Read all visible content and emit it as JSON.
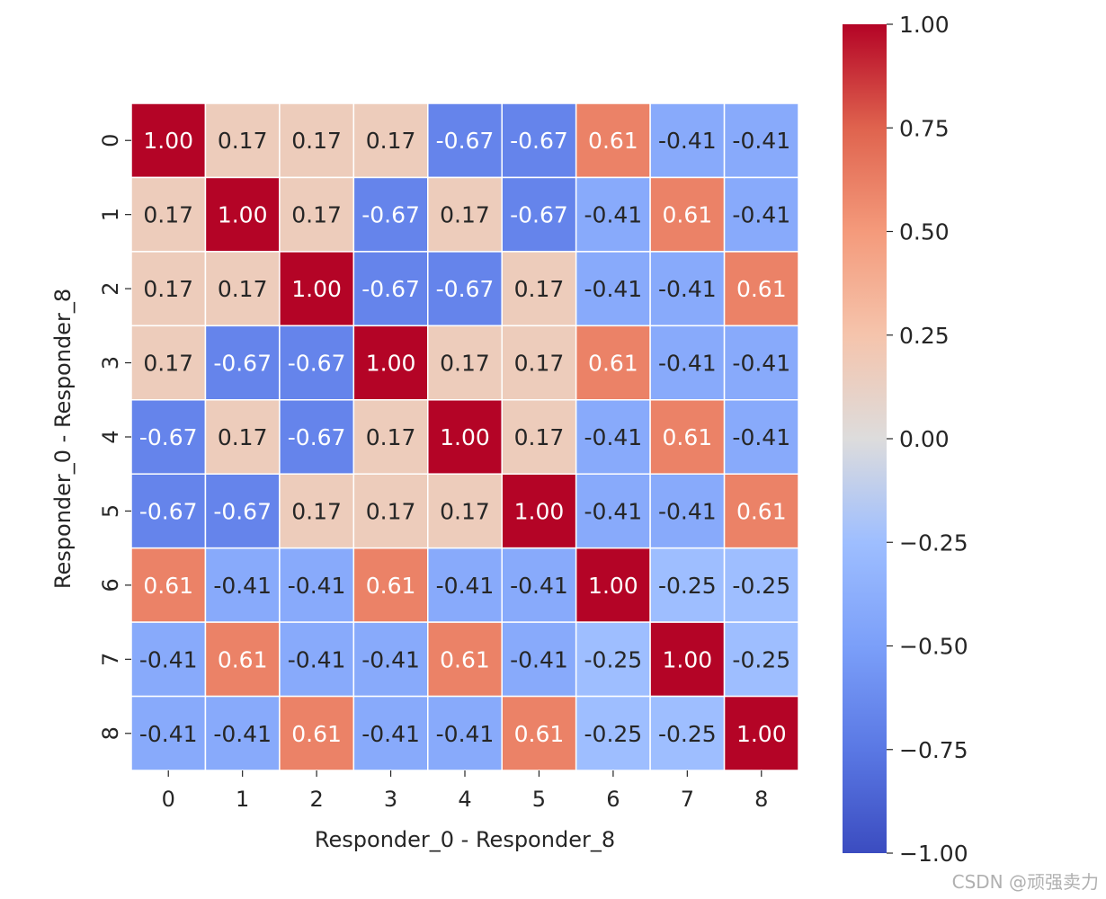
{
  "chart_data": {
    "type": "heatmap",
    "xlabel": "Responder_0 - Responder_8",
    "ylabel": "Responder_0 - Responder_8",
    "x_ticks": [
      "0",
      "1",
      "2",
      "3",
      "4",
      "5",
      "6",
      "7",
      "8"
    ],
    "y_ticks": [
      "0",
      "1",
      "2",
      "3",
      "4",
      "5",
      "6",
      "7",
      "8"
    ],
    "values": [
      [
        1.0,
        0.17,
        0.17,
        0.17,
        -0.67,
        -0.67,
        0.61,
        -0.41,
        -0.41
      ],
      [
        0.17,
        1.0,
        0.17,
        -0.67,
        0.17,
        -0.67,
        -0.41,
        0.61,
        -0.41
      ],
      [
        0.17,
        0.17,
        1.0,
        -0.67,
        -0.67,
        0.17,
        -0.41,
        -0.41,
        0.61
      ],
      [
        0.17,
        -0.67,
        -0.67,
        1.0,
        0.17,
        0.17,
        0.61,
        -0.41,
        -0.41
      ],
      [
        -0.67,
        0.17,
        -0.67,
        0.17,
        1.0,
        0.17,
        -0.41,
        0.61,
        -0.41
      ],
      [
        -0.67,
        -0.67,
        0.17,
        0.17,
        0.17,
        1.0,
        -0.41,
        -0.41,
        0.61
      ],
      [
        0.61,
        -0.41,
        -0.41,
        0.61,
        -0.41,
        -0.41,
        1.0,
        -0.25,
        -0.25
      ],
      [
        -0.41,
        0.61,
        -0.41,
        -0.41,
        0.61,
        -0.41,
        -0.25,
        1.0,
        -0.25
      ],
      [
        -0.41,
        -0.41,
        0.61,
        -0.41,
        -0.41,
        0.61,
        -0.25,
        -0.25,
        1.0
      ]
    ],
    "cell_labels": [
      [
        "1.00",
        "0.17",
        "0.17",
        "0.17",
        "-0.67",
        "-0.67",
        "0.61",
        "-0.41",
        "-0.41"
      ],
      [
        "0.17",
        "1.00",
        "0.17",
        "-0.67",
        "0.17",
        "-0.67",
        "-0.41",
        "0.61",
        "-0.41"
      ],
      [
        "0.17",
        "0.17",
        "1.00",
        "-0.67",
        "-0.67",
        "0.17",
        "-0.41",
        "-0.41",
        "0.61"
      ],
      [
        "0.17",
        "-0.67",
        "-0.67",
        "1.00",
        "0.17",
        "0.17",
        "0.61",
        "-0.41",
        "-0.41"
      ],
      [
        "-0.67",
        "0.17",
        "-0.67",
        "0.17",
        "1.00",
        "0.17",
        "-0.41",
        "0.61",
        "-0.41"
      ],
      [
        "-0.67",
        "-0.67",
        "0.17",
        "0.17",
        "0.17",
        "1.00",
        "-0.41",
        "-0.41",
        "0.61"
      ],
      [
        "0.61",
        "-0.41",
        "-0.41",
        "0.61",
        "-0.41",
        "-0.41",
        "1.00",
        "-0.25",
        "-0.25"
      ],
      [
        "-0.41",
        "0.61",
        "-0.41",
        "-0.41",
        "0.61",
        "-0.41",
        "-0.25",
        "1.00",
        "-0.25"
      ],
      [
        "-0.41",
        "-0.41",
        "0.61",
        "-0.41",
        "-0.41",
        "0.61",
        "-0.25",
        "-0.25",
        "1.00"
      ]
    ],
    "vmin": -1.0,
    "vmax": 1.0,
    "colormap": "coolwarm",
    "colorbar": {
      "values": [
        1.0,
        0.75,
        0.5,
        0.25,
        0.0,
        -0.25,
        -0.5,
        -0.75,
        -1.0
      ],
      "labels": [
        "1.00",
        "0.75",
        "0.50",
        "0.25",
        "0.00",
        "−0.25",
        "−0.50",
        "−0.75",
        "−1.00"
      ]
    },
    "grid": false,
    "legend": "colorbar-right"
  },
  "watermark": "CSDN @顽强卖力",
  "colors": {
    "cell_border": "#ffffff",
    "text_dark": "#262626",
    "text_light": "#ffffff"
  }
}
